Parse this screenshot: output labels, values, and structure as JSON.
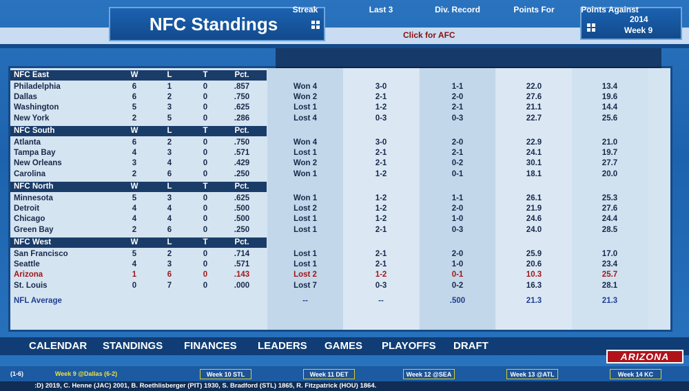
{
  "header": {
    "title": "NFC Standings",
    "switch_link": "Click for AFC",
    "season": "2014",
    "week": "Week 9"
  },
  "stat_columns": [
    "Streak",
    "Last 3",
    "Div. Record",
    "Points For",
    "Points Against"
  ],
  "record_columns": [
    "W",
    "L",
    "T",
    "Pct."
  ],
  "divisions": [
    {
      "name": "NFC East",
      "teams": [
        {
          "name": "Philadelphia",
          "w": 6,
          "l": 1,
          "t": 0,
          "pct": ".857",
          "streak": "Won 4",
          "last3": "3-0",
          "div_record": "1-1",
          "pf": "22.0",
          "pa": "13.4"
        },
        {
          "name": "Dallas",
          "w": 6,
          "l": 2,
          "t": 0,
          "pct": ".750",
          "streak": "Won 2",
          "last3": "2-1",
          "div_record": "2-0",
          "pf": "27.6",
          "pa": "19.6"
        },
        {
          "name": "Washington",
          "w": 5,
          "l": 3,
          "t": 0,
          "pct": ".625",
          "streak": "Lost 1",
          "last3": "1-2",
          "div_record": "2-1",
          "pf": "21.1",
          "pa": "14.4"
        },
        {
          "name": "New York",
          "w": 2,
          "l": 5,
          "t": 0,
          "pct": ".286",
          "streak": "Lost 4",
          "last3": "0-3",
          "div_record": "0-3",
          "pf": "22.7",
          "pa": "25.6"
        }
      ]
    },
    {
      "name": "NFC South",
      "teams": [
        {
          "name": "Atlanta",
          "w": 6,
          "l": 2,
          "t": 0,
          "pct": ".750",
          "streak": "Won 4",
          "last3": "3-0",
          "div_record": "2-0",
          "pf": "22.9",
          "pa": "21.0"
        },
        {
          "name": "Tampa Bay",
          "w": 4,
          "l": 3,
          "t": 0,
          "pct": ".571",
          "streak": "Lost 1",
          "last3": "2-1",
          "div_record": "2-1",
          "pf": "24.1",
          "pa": "19.7"
        },
        {
          "name": "New Orleans",
          "w": 3,
          "l": 4,
          "t": 0,
          "pct": ".429",
          "streak": "Won 2",
          "last3": "2-1",
          "div_record": "0-2",
          "pf": "30.1",
          "pa": "27.7"
        },
        {
          "name": "Carolina",
          "w": 2,
          "l": 6,
          "t": 0,
          "pct": ".250",
          "streak": "Won 1",
          "last3": "1-2",
          "div_record": "0-1",
          "pf": "18.1",
          "pa": "20.0"
        }
      ]
    },
    {
      "name": "NFC North",
      "teams": [
        {
          "name": "Minnesota",
          "w": 5,
          "l": 3,
          "t": 0,
          "pct": ".625",
          "streak": "Won 1",
          "last3": "1-2",
          "div_record": "1-1",
          "pf": "26.1",
          "pa": "25.3"
        },
        {
          "name": "Detroit",
          "w": 4,
          "l": 4,
          "t": 0,
          "pct": ".500",
          "streak": "Lost 2",
          "last3": "1-2",
          "div_record": "2-0",
          "pf": "21.9",
          "pa": "27.6"
        },
        {
          "name": "Chicago",
          "w": 4,
          "l": 4,
          "t": 0,
          "pct": ".500",
          "streak": "Lost 1",
          "last3": "1-2",
          "div_record": "1-0",
          "pf": "24.6",
          "pa": "24.4"
        },
        {
          "name": "Green Bay",
          "w": 2,
          "l": 6,
          "t": 0,
          "pct": ".250",
          "streak": "Lost 1",
          "last3": "2-1",
          "div_record": "0-3",
          "pf": "24.0",
          "pa": "28.5"
        }
      ]
    },
    {
      "name": "NFC West",
      "teams": [
        {
          "name": "San Francisco",
          "w": 5,
          "l": 2,
          "t": 0,
          "pct": ".714",
          "streak": "Lost 1",
          "last3": "2-1",
          "div_record": "2-0",
          "pf": "25.9",
          "pa": "17.0"
        },
        {
          "name": "Seattle",
          "w": 4,
          "l": 3,
          "t": 0,
          "pct": ".571",
          "streak": "Lost 1",
          "last3": "2-1",
          "div_record": "1-0",
          "pf": "20.6",
          "pa": "23.4"
        },
        {
          "name": "Arizona",
          "w": 1,
          "l": 6,
          "t": 0,
          "pct": ".143",
          "streak": "Lost 2",
          "last3": "1-2",
          "div_record": "0-1",
          "pf": "10.3",
          "pa": "25.7",
          "highlight": true
        },
        {
          "name": "St. Louis",
          "w": 0,
          "l": 7,
          "t": 0,
          "pct": ".000",
          "streak": "Lost 7",
          "last3": "0-3",
          "div_record": "0-2",
          "pf": "16.3",
          "pa": "28.1"
        }
      ]
    }
  ],
  "average": {
    "name": "NFL Average",
    "streak": "--",
    "last3": "--",
    "div_record": ".500",
    "pf": "21.3",
    "pa": "21.3"
  },
  "nav": [
    "CALENDAR",
    "STANDINGS",
    "FINANCES",
    "LEADERS",
    "GAMES",
    "PLAYOFFS",
    "DRAFT"
  ],
  "team_logo": "ARIZONA",
  "footer": {
    "record": "(1-6)",
    "weeks": [
      "Week 9 @Dallas (6-2)",
      "Week 10 STL",
      "Week 11 DET",
      "Week 12 @SEA",
      "Week 13 @ATL",
      "Week 14 KC"
    ],
    "ticker": ":D) 2019,   C. Henne (JAC) 2001,   B. Roethlisberger (PIT) 1930,   S. Bradford (STL) 1865,   R. Fitzpatrick (HOU) 1864."
  }
}
